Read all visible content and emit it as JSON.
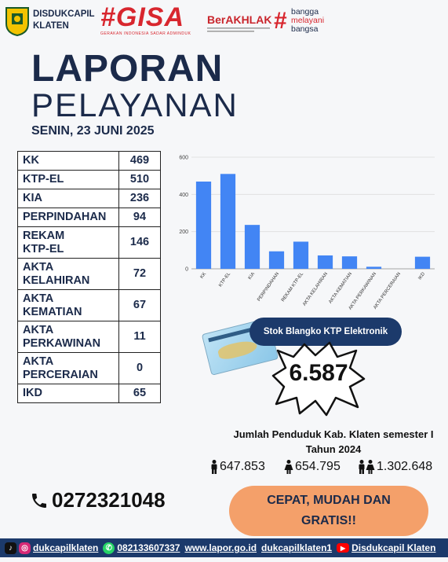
{
  "header": {
    "org_line1": "DISDUKCAPIL",
    "org_line2": "KLATEN",
    "gisa": "#GISA",
    "gisa_sub": "GERAKAN INDONESIA SADAR ADMINDUK",
    "berakhlak": "BerAKHLAK",
    "bangga_line1": "bangga",
    "bangga_line2": "melayani",
    "bangga_line3": "bangsa"
  },
  "title": {
    "line1": "LAPORAN",
    "line2": "PELAYANAN",
    "date": "SENIN, 23 JUNI 2025"
  },
  "services": [
    {
      "label": [
        "KK"
      ],
      "value": "469"
    },
    {
      "label": [
        "KTP-EL"
      ],
      "value": "510"
    },
    {
      "label": [
        "KIA"
      ],
      "value": "236"
    },
    {
      "label": [
        "PERPINDAHAN"
      ],
      "value": "94"
    },
    {
      "label": [
        "REKAM",
        "KTP-EL"
      ],
      "value": "146"
    },
    {
      "label": [
        "AKTA",
        "KELAHIRAN"
      ],
      "value": "72"
    },
    {
      "label": [
        "AKTA",
        "KEMATIAN"
      ],
      "value": "67"
    },
    {
      "label": [
        "AKTA",
        "PERKAWINAN"
      ],
      "value": "11"
    },
    {
      "label": [
        "AKTA",
        "PERCERAIAN"
      ],
      "value": "0"
    },
    {
      "label": [
        "IKD"
      ],
      "value": "65"
    }
  ],
  "chart_data": {
    "type": "bar",
    "categories": [
      "KK",
      "KTP-EL",
      "KIA",
      "PERPINDAHAN",
      "REKAM KTP-EL",
      "AKTA KELAHIRAN",
      "AKTA KEMATIAN",
      "AKTA PERKAWINAN",
      "AKTA PERCERAIAN",
      "IKD"
    ],
    "values": [
      469,
      510,
      236,
      94,
      146,
      72,
      67,
      11,
      0,
      65
    ],
    "yticks": [
      0,
      200,
      400,
      600
    ],
    "ylim": [
      0,
      600
    ],
    "grid": true,
    "bar_color": "#4285f4"
  },
  "stock": {
    "label": "Stok Blangko KTP Elektronik",
    "value": "6.587"
  },
  "population": {
    "title_line1": "Jumlah Penduduk Kab. Klaten semester I",
    "title_line2": "Tahun 2024",
    "male": "647.853",
    "female": "654.795",
    "total": "1.302.648"
  },
  "contact": {
    "phone": "0272321048",
    "cta_line1": "CEPAT, MUDAH DAN",
    "cta_line2": "GRATIS!!"
  },
  "footer": {
    "instagram": "dukcapilklaten",
    "whatsapp": "082133607337",
    "lapor": "www.lapor.go.id",
    "facebook": "dukcapilklaten1",
    "youtube": "Disdukcapil Klaten"
  },
  "colors": {
    "navy": "#1c3a6b",
    "red": "#d8262e",
    "orange": "#f4a06a",
    "bar": "#4285f4"
  }
}
